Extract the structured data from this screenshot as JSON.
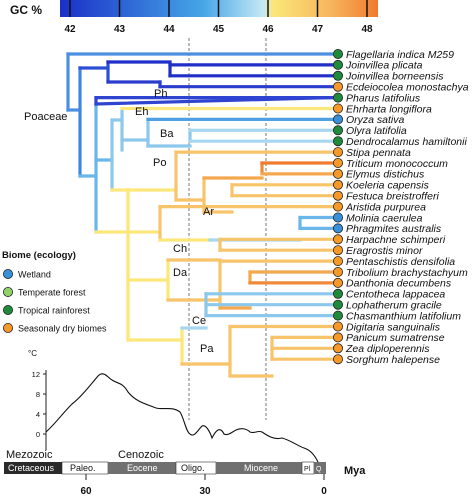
{
  "gc_bar": {
    "title": "GC %",
    "ticks": [
      "42",
      "43",
      "44",
      "45",
      "46",
      "47",
      "48"
    ]
  },
  "clades": {
    "poaceae": "Poaceae",
    "ph": "Ph",
    "eh": "Eh",
    "ba": "Ba",
    "po": "Po",
    "ar": "Ar",
    "ch": "Ch",
    "da": "Da",
    "ce": "Ce",
    "pa": "Pa"
  },
  "taxa": [
    {
      "name": "Flagellaria indica M259",
      "biome": "tropical"
    },
    {
      "name": "Joinvillea plicata",
      "biome": "tropical"
    },
    {
      "name": "Joinvillea borneensis",
      "biome": "tropical"
    },
    {
      "name": "Ecdeiocolea monostachya",
      "biome": "dry"
    },
    {
      "name": "Pharus latifolius",
      "biome": "tropical"
    },
    {
      "name": "Ehrharta longiflora",
      "biome": "dry"
    },
    {
      "name": "Oryza sativa",
      "biome": "wetland"
    },
    {
      "name": "Olyra latifolia",
      "biome": "tropical"
    },
    {
      "name": "Dendrocalamus hamiltonii",
      "biome": "tropical"
    },
    {
      "name": "Stipa pennata",
      "biome": "dry"
    },
    {
      "name": "Triticum monococcum",
      "biome": "dry"
    },
    {
      "name": "Elymus distichus",
      "biome": "dry"
    },
    {
      "name": "Koeleria capensis",
      "biome": "dry"
    },
    {
      "name": "Festuca breistrofferi",
      "biome": "dry"
    },
    {
      "name": "Aristida purpurea",
      "biome": "dry"
    },
    {
      "name": "Molinia caerulea",
      "biome": "wetland"
    },
    {
      "name": "Phragmites australis",
      "biome": "wetland"
    },
    {
      "name": "Harpachne schimperi",
      "biome": "dry"
    },
    {
      "name": "Eragrostis minor",
      "biome": "dry"
    },
    {
      "name": "Pentaschistis densifolia",
      "biome": "dry"
    },
    {
      "name": "Tribolium brachystachyum",
      "biome": "dry"
    },
    {
      "name": "Danthonia decumbens",
      "biome": "dry"
    },
    {
      "name": "Centotheca lappacea",
      "biome": "tropical"
    },
    {
      "name": "Lophatherum gracile",
      "biome": "tropical"
    },
    {
      "name": "Chasmanthium latifolium",
      "biome": "tropical"
    },
    {
      "name": "Digitaria sanguinalis",
      "biome": "dry"
    },
    {
      "name": "Panicum sumatrense",
      "biome": "dry"
    },
    {
      "name": "Zea diploperennis",
      "biome": "dry"
    },
    {
      "name": "Sorghum halepense",
      "biome": "dry"
    }
  ],
  "legend": {
    "title": "Biome (ecology)",
    "items": [
      {
        "key": "wetland",
        "label": "Wetland",
        "color": "#3b8fd6"
      },
      {
        "key": "temperate",
        "label": "Temperate forest",
        "color": "#8fd26a"
      },
      {
        "key": "tropical",
        "label": "Tropical rainforest",
        "color": "#1f8a3a"
      },
      {
        "key": "dry",
        "label": "Seasonaly dry biomes",
        "color": "#f59a2a"
      }
    ]
  },
  "temperature": {
    "unit": "°C",
    "ticks": [
      "12",
      "8",
      "4",
      "0"
    ]
  },
  "timeline": {
    "era_labels": [
      "Mezozoic",
      "Cenozoic"
    ],
    "periods": [
      "Cretaceous",
      "Paleo.",
      "Eocene",
      "Oligo.",
      "Miocene",
      "Pl",
      "Q"
    ],
    "unit": "Mya",
    "ticks": [
      "60",
      "30",
      "0"
    ]
  }
}
